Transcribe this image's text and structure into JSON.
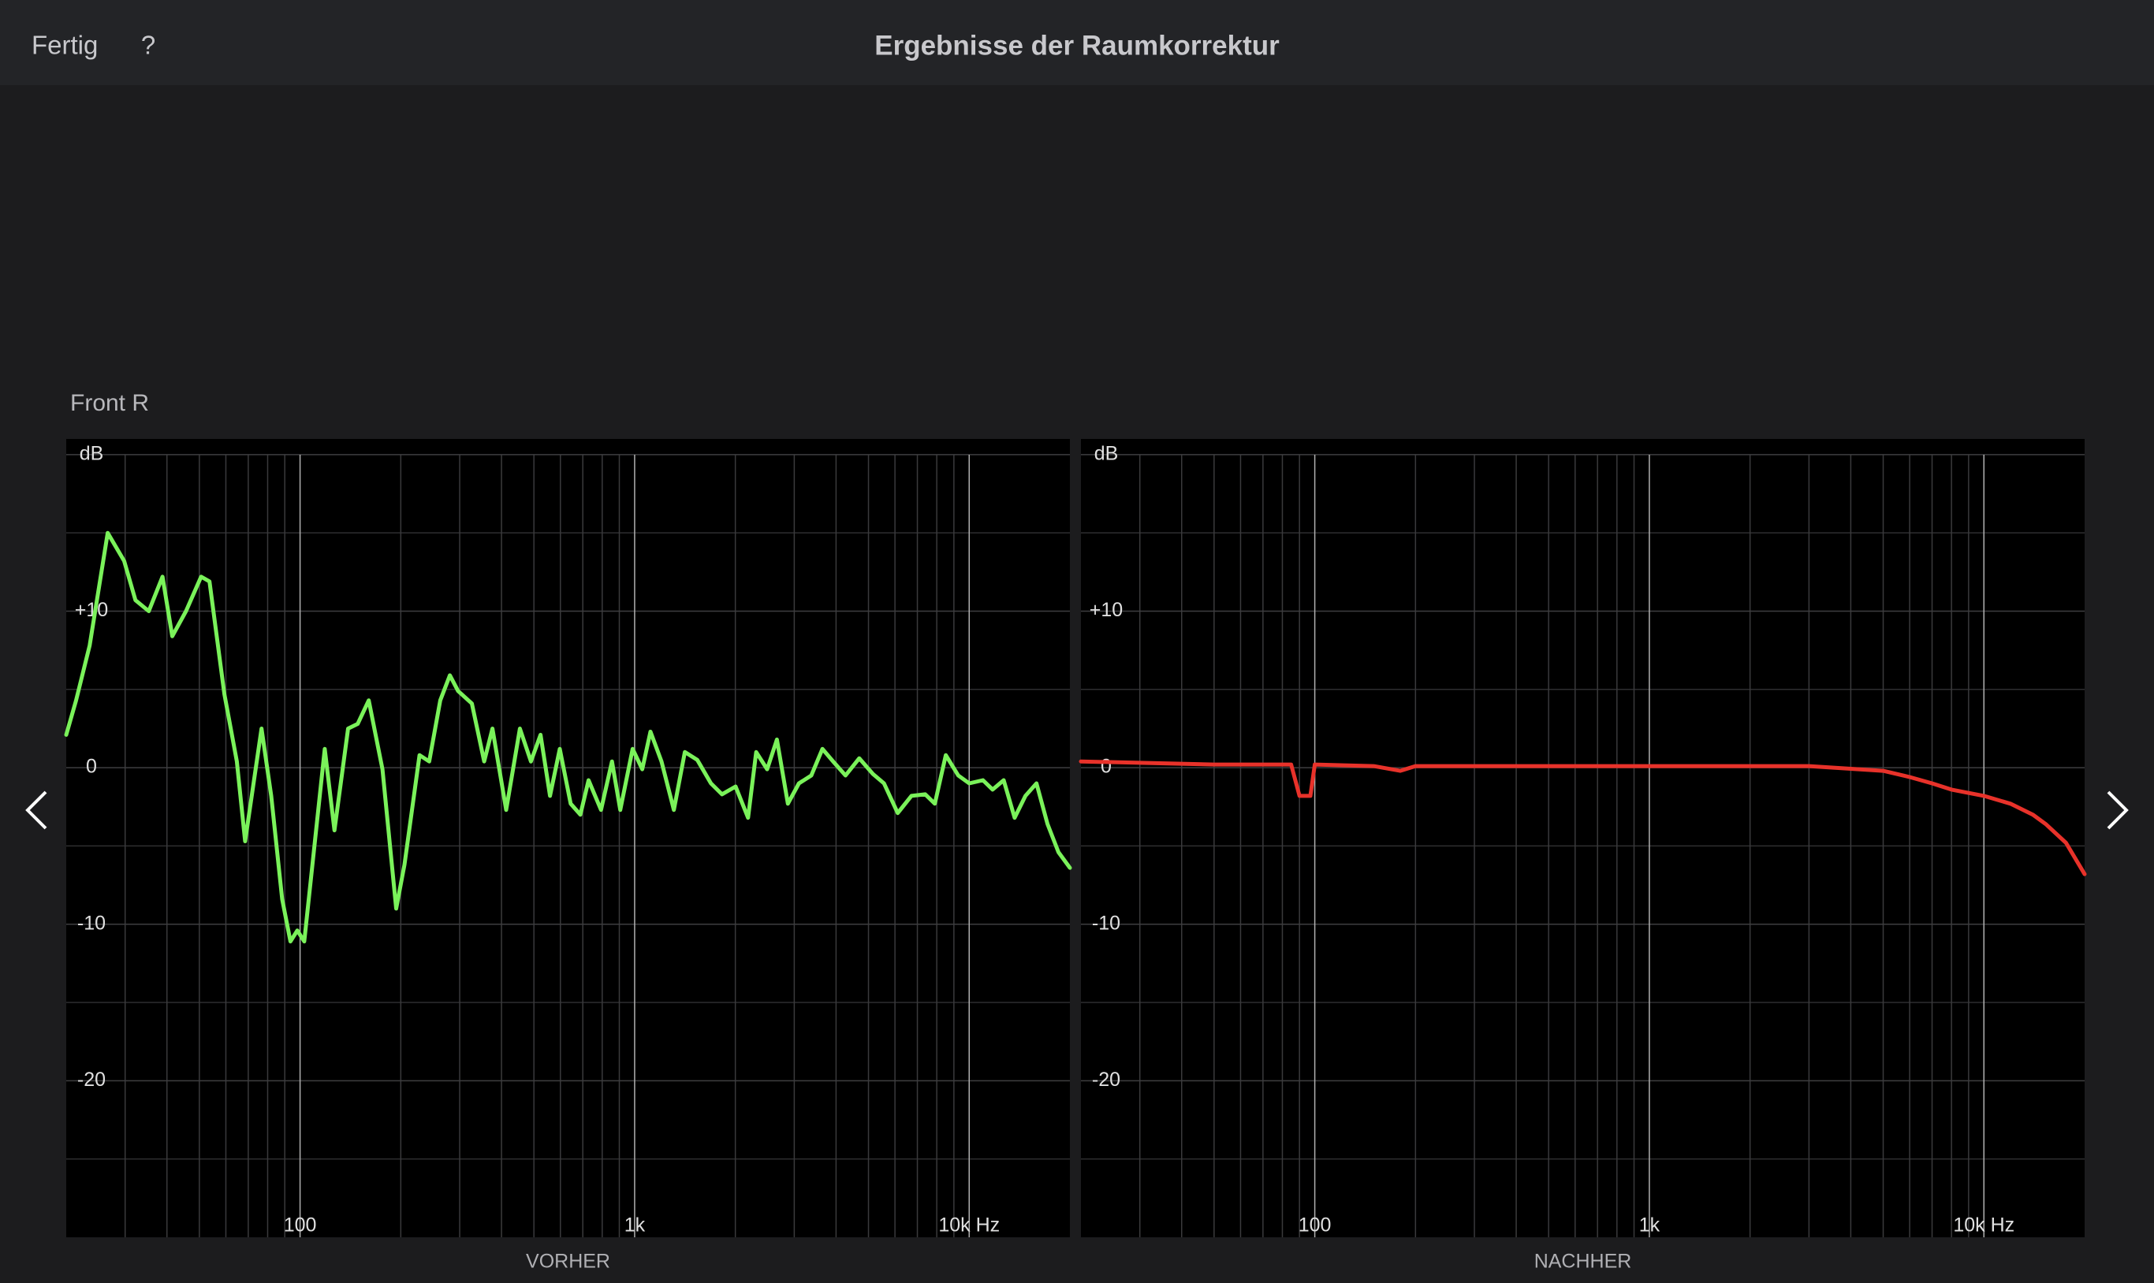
{
  "header": {
    "done": "Fertig",
    "help": "?",
    "title": "Ergebnisse der Raumkorrektur"
  },
  "section_label": "Front R",
  "chart_data": [
    {
      "type": "line",
      "xlabel": "VORHER",
      "log_x": true,
      "grid": true,
      "xlim": [
        20,
        20000
      ],
      "ylim": [
        -30,
        21
      ],
      "xticks": [
        100,
        {
          "value": 1000,
          "label": "1k"
        },
        {
          "value": 10000,
          "label": "10k Hz"
        }
      ],
      "minor_xticks": [
        30,
        40,
        50,
        60,
        70,
        80,
        90,
        200,
        300,
        400,
        500,
        600,
        700,
        800,
        900,
        2000,
        3000,
        4000,
        5000,
        6000,
        7000,
        8000,
        9000
      ],
      "yticks": [
        {
          "value": 20,
          "label": "dB"
        },
        {
          "value": 10,
          "label": "+10"
        },
        0,
        -10,
        -20
      ],
      "minor_yticks": [
        15,
        5,
        -5,
        -15,
        -25
      ],
      "x": [
        20,
        21.4,
        23.5,
        26.6,
        29.8,
        32.2,
        35.3,
        38.8,
        41.5,
        45.6,
        50.6,
        53.6,
        59.4,
        64.7,
        68.5,
        76.7,
        82,
        88.4,
        93.6,
        98.1,
        102.9,
        118.5,
        126.7,
        139.2,
        148.7,
        160.4,
        176.3,
        193.8,
        205.1,
        227.5,
        243.2,
        262.4,
        280.4,
        296.7,
        326.2,
        355.1,
        375.8,
        413,
        454,
        489.8,
        523.4,
        558.7,
        597.3,
        644,
        688.3,
        728.2,
        793.3,
        855.8,
        905.7,
        986.2,
        1054,
        1115,
        1203,
        1310,
        1413,
        1539,
        1691,
        1824,
        2004,
        2183,
        2308,
        2489,
        2662,
        2871,
        3097,
        3374,
        3641,
        3921,
        4270,
        4693,
        5157,
        5562,
        6114,
        6719,
        7390,
        7894,
        8515,
        9274,
        10000,
        10990,
        11750,
        12680,
        13670,
        14730,
        15890,
        17140,
        18490,
        20000
      ],
      "series": [
        {
          "color": "#7af25a",
          "values": [
            2.1,
            4.3,
            7.8,
            15.0,
            13.2,
            10.7,
            10.0,
            12.2,
            8.4,
            10.0,
            12.2,
            11.9,
            4.7,
            0.4,
            -4.7,
            2.5,
            -1.8,
            -8.4,
            -11.1,
            -10.4,
            -11.1,
            1.2,
            -4.0,
            2.5,
            2.8,
            4.3,
            -0.1,
            -9.0,
            -6.2,
            0.8,
            0.4,
            4.3,
            5.9,
            4.9,
            4.1,
            0.4,
            2.5,
            -2.7,
            2.5,
            0.4,
            2.1,
            -1.8,
            1.2,
            -2.3,
            -3.0,
            -0.8,
            -2.7,
            0.4,
            -2.7,
            1.2,
            -0.1,
            2.3,
            0.4,
            -2.7,
            1.0,
            0.5,
            -1.0,
            -1.7,
            -1.2,
            -3.2,
            1.0,
            -0.1,
            1.8,
            -2.3,
            -1.0,
            -0.5,
            1.2,
            0.4,
            -0.5,
            0.6,
            -0.4,
            -1.0,
            -2.9,
            -1.8,
            -1.7,
            -2.3,
            0.8,
            -0.5,
            -1.0,
            -0.8,
            -1.4,
            -0.8,
            -3.2,
            -1.8,
            -1.0,
            -3.6,
            -5.4,
            -6.4
          ]
        }
      ]
    },
    {
      "type": "line",
      "xlabel": "NACHHER",
      "log_x": true,
      "grid": true,
      "xlim": [
        20,
        20000
      ],
      "ylim": [
        -30,
        21
      ],
      "xticks": [
        100,
        {
          "value": 1000,
          "label": "1k"
        },
        {
          "value": 10000,
          "label": "10k Hz"
        }
      ],
      "minor_xticks": [
        30,
        40,
        50,
        60,
        70,
        80,
        90,
        200,
        300,
        400,
        500,
        600,
        700,
        800,
        900,
        2000,
        3000,
        4000,
        5000,
        6000,
        7000,
        8000,
        9000
      ],
      "yticks": [
        {
          "value": 20,
          "label": "dB"
        },
        {
          "value": 10,
          "label": "+10"
        },
        0,
        -10,
        -20
      ],
      "minor_yticks": [
        15,
        5,
        -5,
        -15,
        -25
      ],
      "x": [
        20,
        50,
        85,
        90,
        97,
        100,
        150,
        180,
        200,
        1000,
        3000,
        5000,
        6000,
        7000,
        8000,
        10000,
        12000,
        14000,
        15300,
        17600,
        20000
      ],
      "series": [
        {
          "color": "#e8322a",
          "values": [
            0.4,
            0.2,
            0.2,
            -1.8,
            -1.8,
            0.2,
            0.1,
            -0.2,
            0.1,
            0.1,
            0.1,
            -0.2,
            -0.6,
            -1.0,
            -1.4,
            -1.8,
            -2.3,
            -3.0,
            -3.6,
            -4.8,
            -6.8
          ]
        }
      ]
    }
  ]
}
